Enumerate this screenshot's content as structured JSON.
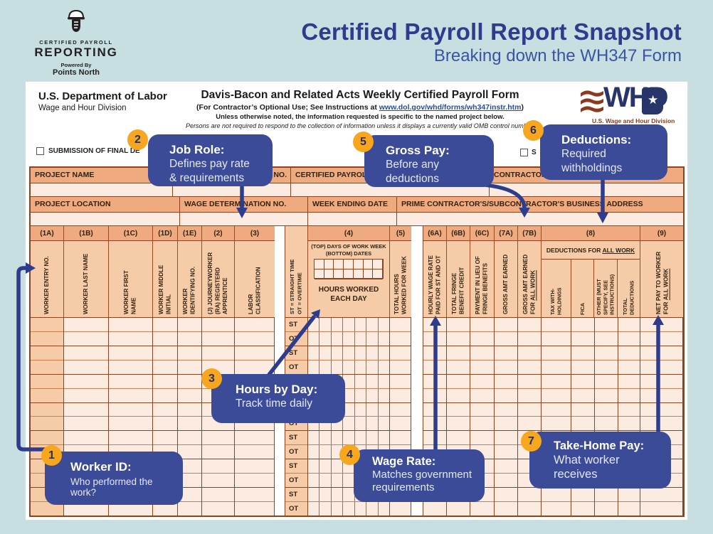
{
  "page": {
    "background": "#c8dfe1"
  },
  "brand": {
    "tagline_top": "CERTIFIED PAYROLL",
    "name": "REPORTING",
    "powered_by": "Powered By",
    "company": "Points North"
  },
  "header": {
    "title": "Certified Payroll Report Snapshot",
    "subtitle": "Breaking down the WH347 Form"
  },
  "form": {
    "agency": "U.S. Department of Labor",
    "division": "Wage and Hour Division",
    "title": "Davis-Bacon and Related Acts Weekly Certified Payroll Form",
    "instructions_prefix": "(For Contractor’s Optional Use; See Instructions at ",
    "instructions_link": "www.dol.gov/whd/forms/wh347instr.htm",
    "instructions_suffix": ")",
    "note": "Unless otherwise noted, the information requested is specific to the named project below.",
    "omb_note": "Persons are not required to respond to the collection of information unless it displays a currently valid OMB control number.",
    "omb_fragment": "8",
    "whd_acronym": "WHD",
    "whd_star": "★",
    "whd_caption": "U.S. Wage and Hour Division",
    "final_checkbox_label": "SUBMISSION OF FINAL DE",
    "right_checkbox_label": "S",
    "row1": {
      "c1": "PROJECT NAME",
      "c2": "PAYROLL NO.",
      "c3": "CERTIFIED PAYROLL REPORT NO.",
      "c4": "CONTRACTOR OR SUBCONTRACTOR"
    },
    "row2": {
      "c1": "PROJECT LOCATION",
      "c2": "WAGE DETERMINATION NO.",
      "c3": "WEEK ENDING DATE",
      "c4": "PRIME CONTRACTOR'S/SUBCONTRACTOR'S BUSINESS ADDRESS"
    },
    "columns": {
      "c1a": {
        "code": "(1A)",
        "label": "WORKER ENTRY NO."
      },
      "c1b": {
        "code": "(1B)",
        "label": "WORKER LAST NAME"
      },
      "c1c": {
        "code": "(1C)",
        "label": "WORKER FIRST\nNAME"
      },
      "c1d": {
        "code": "(1D)",
        "label": "WORKER MIDDLE\nINITIAL"
      },
      "c1e": {
        "code": "(1E)",
        "label": "WORKER\nIDENTIFYING NO."
      },
      "c2": {
        "code": "(2)",
        "label": "(J) JOURNEYWORKER\n(RA) REGISTERD\nAPPRENTICE"
      },
      "c3": {
        "code": "(3)",
        "label": "LABOR\nCLASSIFICATION"
      },
      "stot": {
        "legend": "ST = STRAIGHT TIME\nOT = OVERTIME"
      },
      "c4": {
        "code": "(4)",
        "days_note": "(TOP) DAYS OF WORK WEEK\n(BOTTOM) DATES",
        "hours_label": "HOURS WORKED\nEACH DAY"
      },
      "c5": {
        "code": "(5)",
        "label": "TOTAL HOURS\nWORKED FOR WEEK"
      },
      "c6a": {
        "code": "(6A)",
        "label": "HOURLY WAGE RATE\nPAID FOR ST AND OT"
      },
      "c6b": {
        "code": "(6B)",
        "label": "TOTAL FRINGE\nBENEFIT CREDIT"
      },
      "c6c": {
        "code": "(6C)",
        "label": "PAYMENT IN LIEU OF\nFRINGE BENEFITS"
      },
      "c7a": {
        "code": "(7A)",
        "label": "GROSS AMT EARNED"
      },
      "c7b": {
        "code": "(7B)",
        "label": "GROSS AMT EARNED\nFOR",
        "label_u": "ALL WORK"
      },
      "c8": {
        "code": "(8)",
        "group": "DEDUCTIONS FOR",
        "group_u": "ALL WORK",
        "tax": "TAX WITH-\nHOLDINGS",
        "fica": "FICA",
        "other": "OTHER (MUST\nSPECIFY, SEE\nINSTRUCTIONS)",
        "total": "TOTAL\nDEDUCTIONS"
      },
      "c9": {
        "code": "(9)",
        "label": "NET PAY TO WORKER\nFOR",
        "label_u": "ALL WORK"
      }
    },
    "body_row_labels": [
      "ST",
      "OT",
      "ST",
      "OT",
      "ST",
      "OT",
      "ST",
      "OT",
      "ST",
      "OT",
      "ST",
      "OT",
      "ST",
      "OT"
    ]
  },
  "callouts": [
    {
      "num": "1",
      "title": "Worker ID:",
      "line1": "Who performed the work?",
      "line2": ""
    },
    {
      "num": "2",
      "title": "Job Role:",
      "line1": "Defines pay rate",
      "line2": "& requirements"
    },
    {
      "num": "3",
      "title": "Hours by Day:",
      "line1": "Track time daily",
      "line2": ""
    },
    {
      "num": "4",
      "title": "Wage Rate:",
      "line1": "Matches government",
      "line2": "requirements"
    },
    {
      "num": "5",
      "title": "Gross Pay:",
      "line1": "Before any",
      "line2": "deductions"
    },
    {
      "num": "6",
      "title": "Deductions:",
      "line1": "Required",
      "line2": "withholdings"
    },
    {
      "num": "7",
      "title": "Take-Home Pay:",
      "line1": "What worker receives",
      "line2": ""
    }
  ],
  "colors": {
    "accent_navy": "#2d3c8c",
    "callout_bg": "#3c4b97",
    "badge": "#f7a61e",
    "form_border": "#8d431d",
    "header_cell": "#efab7f",
    "label_cell": "#f6cba8",
    "body_cell": "#fcebe0"
  }
}
